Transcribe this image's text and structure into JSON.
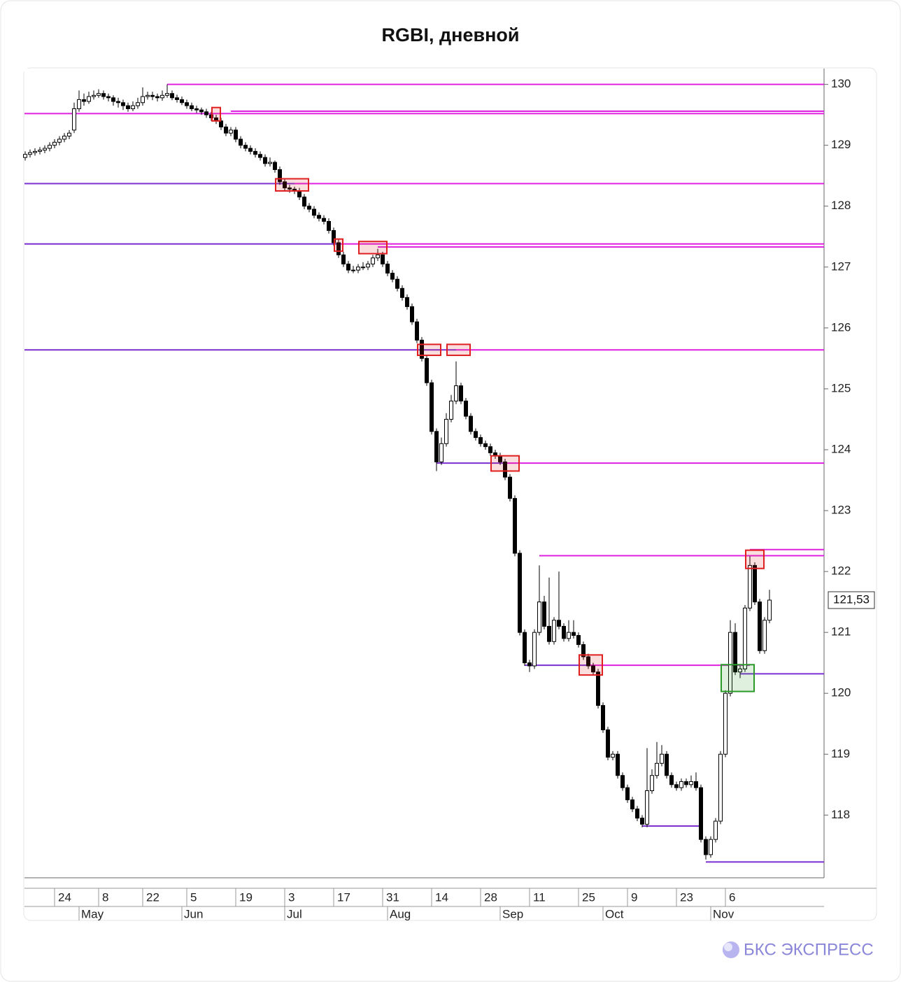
{
  "chart_data": {
    "type": "candlestick",
    "title": "RGBI, дневной",
    "categories": [
      null,
      null,
      null,
      null,
      null,
      null,
      "24",
      null,
      null,
      null,
      null,
      null,
      null,
      null,
      null,
      "8",
      null,
      null,
      null,
      null,
      null,
      null,
      null,
      null,
      "22",
      null,
      null,
      null,
      null,
      null,
      null,
      null,
      null,
      "5",
      null,
      null,
      null,
      null,
      null,
      null,
      null,
      null,
      null,
      "19",
      null,
      null,
      null,
      null,
      null,
      null,
      null,
      null,
      null,
      "3",
      null,
      null,
      null,
      null,
      null,
      null,
      null,
      null,
      null,
      "17",
      null,
      null,
      null,
      null,
      null,
      null,
      null,
      null,
      null,
      "31",
      null,
      null,
      null,
      null,
      null,
      null,
      null,
      null,
      null,
      "14",
      null,
      null,
      null,
      null,
      null,
      null,
      null,
      null,
      null,
      "28",
      null,
      null,
      null,
      null,
      null,
      null,
      null,
      null,
      null,
      "11",
      null,
      null,
      null,
      null,
      null,
      null,
      null,
      null,
      null,
      "25",
      null,
      null,
      null,
      null,
      null,
      null,
      null,
      null,
      null,
      "9",
      null,
      null,
      null,
      null,
      null,
      null,
      null,
      null,
      null,
      "23",
      null,
      null,
      null,
      null,
      null,
      null,
      null,
      null,
      null,
      "6",
      null,
      null,
      null,
      null,
      null,
      null,
      null,
      null,
      null
    ],
    "months": [
      null,
      null,
      null,
      null,
      null,
      null,
      null,
      null,
      null,
      null,
      null,
      "May",
      null,
      null,
      null,
      null,
      null,
      null,
      null,
      null,
      null,
      null,
      null,
      null,
      null,
      null,
      null,
      null,
      null,
      null,
      null,
      null,
      "Jun",
      null,
      null,
      null,
      null,
      null,
      null,
      null,
      null,
      null,
      null,
      null,
      null,
      null,
      null,
      null,
      null,
      null,
      null,
      null,
      null,
      "Jul",
      null,
      null,
      null,
      null,
      null,
      null,
      null,
      null,
      null,
      null,
      null,
      null,
      null,
      null,
      null,
      null,
      null,
      null,
      null,
      null,
      "Aug",
      null,
      null,
      null,
      null,
      null,
      null,
      null,
      null,
      null,
      null,
      null,
      null,
      null,
      null,
      null,
      null,
      null,
      null,
      null,
      null,
      null,
      null,
      "Sep",
      null,
      null,
      null,
      null,
      null,
      null,
      null,
      null,
      null,
      null,
      null,
      null,
      null,
      null,
      null,
      null,
      null,
      null,
      null,
      null,
      "Oct",
      null,
      null,
      null,
      null,
      null,
      null,
      null,
      null,
      null,
      null,
      null,
      null,
      null,
      null,
      null,
      null,
      null,
      null,
      null,
      null,
      null,
      "Nov",
      null,
      null,
      null,
      null,
      null,
      null,
      null,
      null,
      null,
      null,
      null,
      null
    ],
    "open": [
      128.8,
      128.85,
      128.88,
      128.9,
      128.92,
      128.95,
      129.0,
      129.05,
      129.1,
      129.15,
      129.25,
      129.6,
      129.75,
      129.72,
      129.8,
      129.82,
      129.85,
      129.8,
      129.78,
      129.72,
      129.7,
      129.65,
      129.6,
      129.65,
      129.7,
      129.8,
      129.82,
      129.8,
      129.78,
      129.82,
      129.85,
      129.78,
      129.75,
      129.7,
      129.65,
      129.6,
      129.58,
      129.55,
      129.5,
      129.45,
      129.4,
      129.3,
      129.2,
      129.25,
      129.1,
      129.0,
      128.95,
      128.9,
      128.85,
      128.8,
      128.7,
      128.72,
      128.6,
      128.4,
      128.3,
      128.28,
      128.25,
      128.15,
      128.0,
      127.95,
      127.85,
      127.8,
      127.75,
      127.6,
      127.4,
      127.2,
      127.05,
      126.95,
      126.95,
      127.0,
      127.0,
      127.05,
      127.15,
      127.2,
      127.05,
      126.9,
      126.8,
      126.65,
      126.5,
      126.35,
      126.1,
      125.8,
      125.5,
      125.1,
      124.3,
      123.8,
      124.1,
      124.5,
      124.8,
      125.05,
      124.8,
      124.55,
      124.3,
      124.2,
      124.1,
      124.05,
      123.95,
      123.9,
      123.8,
      123.55,
      123.2,
      122.3,
      121.0,
      120.5,
      120.45,
      121.0,
      121.5,
      121.1,
      120.85,
      121.2,
      121.1,
      120.9,
      121.0,
      120.95,
      120.8,
      120.6,
      120.45,
      120.35,
      119.8,
      119.4,
      118.95,
      119.0,
      118.65,
      118.45,
      118.25,
      118.1,
      117.95,
      117.85,
      118.4,
      118.65,
      118.85,
      119.0,
      118.65,
      118.5,
      118.45,
      118.55,
      118.5,
      118.55,
      118.45,
      117.6,
      117.35,
      117.6,
      117.9,
      119.0,
      120.0,
      121.0,
      120.35,
      120.4,
      121.4,
      122.1,
      121.5,
      120.7,
      121.2
    ],
    "high": [
      128.9,
      128.93,
      128.95,
      128.97,
      129.0,
      129.05,
      129.1,
      129.15,
      129.2,
      129.25,
      129.7,
      129.9,
      129.85,
      129.88,
      129.9,
      129.92,
      129.9,
      129.85,
      129.82,
      129.78,
      129.75,
      129.7,
      129.72,
      129.78,
      129.95,
      129.88,
      129.88,
      129.85,
      129.9,
      130.0,
      129.9,
      129.83,
      129.8,
      129.75,
      129.7,
      129.65,
      129.62,
      129.6,
      129.55,
      129.5,
      129.45,
      129.35,
      129.3,
      129.3,
      129.15,
      129.05,
      129.0,
      128.95,
      128.9,
      128.85,
      128.8,
      128.75,
      128.65,
      128.45,
      128.35,
      128.32,
      128.3,
      128.2,
      128.05,
      128.0,
      127.9,
      127.85,
      127.8,
      127.65,
      127.45,
      127.25,
      127.1,
      127.02,
      127.05,
      127.08,
      127.1,
      127.2,
      127.3,
      127.25,
      127.1,
      126.95,
      126.85,
      126.7,
      126.55,
      126.4,
      126.15,
      125.85,
      125.55,
      125.15,
      124.35,
      124.2,
      124.6,
      124.9,
      125.45,
      125.1,
      124.85,
      124.6,
      124.35,
      124.25,
      124.15,
      124.1,
      124.0,
      123.95,
      123.85,
      123.6,
      123.25,
      122.35,
      121.05,
      120.55,
      121.05,
      122.1,
      121.6,
      121.9,
      121.25,
      122.0,
      121.15,
      121.2,
      121.2,
      121.0,
      120.85,
      120.65,
      120.5,
      120.4,
      119.85,
      119.45,
      119.05,
      119.05,
      118.7,
      118.5,
      118.3,
      118.15,
      118.0,
      119.1,
      118.75,
      119.2,
      119.15,
      119.05,
      118.7,
      118.55,
      118.6,
      118.6,
      118.65,
      118.7,
      118.5,
      117.65,
      117.65,
      117.95,
      119.05,
      120.05,
      121.2,
      121.15,
      120.45,
      121.45,
      122.25,
      122.15,
      121.55,
      121.25,
      121.7
    ],
    "low": [
      128.75,
      128.8,
      128.83,
      128.85,
      128.87,
      128.9,
      128.95,
      129.0,
      129.05,
      129.1,
      129.2,
      129.55,
      129.65,
      129.68,
      129.75,
      129.78,
      129.75,
      129.72,
      129.65,
      129.62,
      129.58,
      129.55,
      129.56,
      129.6,
      129.65,
      129.75,
      129.74,
      129.72,
      129.73,
      129.78,
      129.74,
      129.7,
      129.66,
      129.6,
      129.56,
      129.53,
      129.5,
      129.45,
      129.4,
      129.35,
      129.25,
      129.15,
      129.15,
      129.05,
      128.95,
      128.9,
      128.85,
      128.8,
      128.75,
      128.65,
      128.65,
      128.55,
      128.35,
      128.25,
      128.22,
      128.2,
      128.1,
      127.95,
      127.9,
      127.8,
      127.75,
      127.7,
      127.55,
      127.35,
      127.15,
      127.0,
      126.9,
      126.9,
      126.9,
      126.95,
      126.95,
      127.0,
      127.1,
      127.0,
      126.85,
      126.75,
      126.6,
      126.45,
      126.3,
      126.05,
      125.75,
      125.45,
      125.05,
      124.25,
      123.65,
      123.75,
      124.05,
      124.45,
      124.75,
      124.75,
      124.5,
      124.25,
      124.15,
      124.05,
      124.0,
      123.9,
      123.85,
      123.75,
      123.5,
      123.15,
      122.25,
      120.95,
      120.45,
      120.35,
      120.4,
      120.95,
      121.05,
      120.8,
      120.8,
      121.05,
      120.85,
      120.85,
      120.9,
      120.75,
      120.55,
      120.4,
      120.3,
      119.75,
      119.35,
      118.9,
      118.9,
      118.6,
      118.4,
      118.2,
      118.05,
      117.9,
      117.8,
      117.8,
      118.35,
      118.6,
      118.8,
      118.6,
      118.45,
      118.4,
      118.4,
      118.45,
      118.45,
      118.4,
      117.55,
      117.27,
      117.3,
      117.55,
      117.85,
      118.95,
      119.95,
      120.3,
      120.25,
      120.35,
      121.35,
      121.45,
      120.65,
      120.65,
      121.15
    ],
    "close": [
      128.85,
      128.88,
      128.9,
      128.92,
      128.95,
      129.0,
      129.05,
      129.1,
      129.15,
      129.2,
      129.6,
      129.75,
      129.72,
      129.8,
      129.82,
      129.85,
      129.8,
      129.78,
      129.72,
      129.7,
      129.65,
      129.6,
      129.65,
      129.7,
      129.8,
      129.82,
      129.8,
      129.78,
      129.82,
      129.85,
      129.78,
      129.75,
      129.7,
      129.65,
      129.6,
      129.58,
      129.55,
      129.5,
      129.45,
      129.4,
      129.3,
      129.2,
      129.25,
      129.1,
      129.0,
      128.95,
      128.9,
      128.85,
      128.8,
      128.7,
      128.72,
      128.6,
      128.4,
      128.3,
      128.28,
      128.25,
      128.15,
      128.0,
      127.95,
      127.85,
      127.8,
      127.75,
      127.6,
      127.4,
      127.2,
      127.05,
      126.95,
      126.95,
      127.0,
      127.0,
      127.05,
      127.15,
      127.2,
      127.05,
      126.9,
      126.8,
      126.65,
      126.5,
      126.35,
      126.1,
      125.8,
      125.5,
      125.1,
      124.3,
      123.8,
      124.1,
      124.5,
      124.8,
      125.05,
      124.8,
      124.55,
      124.3,
      124.2,
      124.1,
      124.05,
      123.95,
      123.9,
      123.8,
      123.55,
      123.2,
      122.3,
      121.0,
      120.5,
      120.45,
      121.0,
      121.5,
      121.1,
      120.85,
      121.2,
      121.1,
      120.9,
      121.0,
      120.95,
      120.8,
      120.6,
      120.45,
      120.35,
      119.8,
      119.4,
      118.95,
      119.0,
      118.65,
      118.45,
      118.25,
      118.1,
      117.95,
      117.85,
      118.4,
      118.65,
      118.85,
      119.0,
      118.65,
      118.5,
      118.45,
      118.55,
      118.5,
      118.55,
      118.45,
      117.6,
      117.35,
      117.6,
      117.9,
      119.0,
      120.0,
      121.0,
      120.35,
      120.4,
      121.4,
      122.1,
      121.5,
      120.7,
      121.2,
      121.53
    ],
    "up_color": "#ffffff",
    "down_color": "#000000",
    "ylim": [
      116.97,
      130.26
    ],
    "yticks": [
      118,
      119,
      120,
      121,
      122,
      123,
      124,
      125,
      126,
      127,
      128,
      129,
      130
    ],
    "last_price": {
      "value": 121.53,
      "label": "121,53"
    },
    "levels": [
      {
        "value": 130.0,
        "segments": [
          {
            "from": 29,
            "color": "#e020e0"
          }
        ]
      },
      {
        "value": 129.56,
        "segments": [
          {
            "from": 42,
            "color": "#e020e0"
          }
        ]
      },
      {
        "value": 129.52,
        "segments": [
          {
            "from": 0,
            "color": "#e020e0"
          }
        ]
      },
      {
        "value": 128.37,
        "segments": [
          {
            "from": 0,
            "to": 55,
            "color": "#7b2fd0"
          },
          {
            "from": 55,
            "color": "#e020e0"
          }
        ]
      },
      {
        "value": 127.38,
        "segments": [
          {
            "from": 0,
            "to": 64,
            "color": "#7b2fd0"
          },
          {
            "from": 64,
            "color": "#e020e0"
          }
        ]
      },
      {
        "value": 127.33,
        "segments": [
          {
            "from": 72,
            "color": "#e020e0"
          }
        ]
      },
      {
        "value": 125.64,
        "segments": [
          {
            "from": 0,
            "to": 88,
            "color": "#7b2fd0"
          },
          {
            "from": 88,
            "color": "#e020e0"
          }
        ]
      },
      {
        "value": 123.78,
        "segments": [
          {
            "from": 84,
            "to": 98,
            "color": "#7b2fd0"
          },
          {
            "from": 98,
            "color": "#e020e0"
          }
        ]
      },
      {
        "value": 122.26,
        "segments": [
          {
            "from": 105,
            "color": "#e020e0"
          }
        ]
      },
      {
        "value": 122.36,
        "segments": [
          {
            "from": 148,
            "color": "#e020e0"
          }
        ]
      },
      {
        "value": 120.46,
        "segments": [
          {
            "from": 102,
            "to": 115,
            "color": "#7b2fd0"
          },
          {
            "from": 115,
            "to": 148,
            "color": "#e020e0"
          }
        ]
      },
      {
        "value": 120.32,
        "segments": [
          {
            "from": 146,
            "color": "#7b2fd0"
          }
        ]
      },
      {
        "value": 117.82,
        "segments": [
          {
            "from": 126,
            "to": 138,
            "color": "#7b2fd0"
          }
        ]
      },
      {
        "value": 117.23,
        "segments": [
          {
            "from": 139,
            "color": "#7b2fd0"
          }
        ]
      }
    ],
    "boxes": [
      {
        "from": 39,
        "to": 39,
        "low": 129.4,
        "high": 129.62,
        "color": "#e02020"
      },
      {
        "from": 52,
        "to": 57,
        "low": 128.25,
        "high": 128.45,
        "color": "#e02020"
      },
      {
        "from": 64,
        "to": 64,
        "low": 127.26,
        "high": 127.46,
        "color": "#e02020"
      },
      {
        "from": 69,
        "to": 73,
        "low": 127.22,
        "high": 127.42,
        "color": "#e02020"
      },
      {
        "from": 81,
        "to": 84,
        "low": 125.55,
        "high": 125.73,
        "color": "#e02020"
      },
      {
        "from": 87,
        "to": 90,
        "low": 125.55,
        "high": 125.73,
        "color": "#e02020"
      },
      {
        "from": 96,
        "to": 100,
        "low": 123.65,
        "high": 123.9,
        "color": "#e02020"
      },
      {
        "from": 114,
        "to": 117,
        "low": 120.3,
        "high": 120.63,
        "color": "#e02020"
      },
      {
        "from": 148,
        "to": 150,
        "low": 122.05,
        "high": 122.35,
        "color": "#e02020"
      },
      {
        "from": 143,
        "to": 148,
        "low": 120.03,
        "high": 120.47,
        "color": "#2a9a2a"
      }
    ]
  },
  "brand": "БКС ЭКСПРЕСС"
}
